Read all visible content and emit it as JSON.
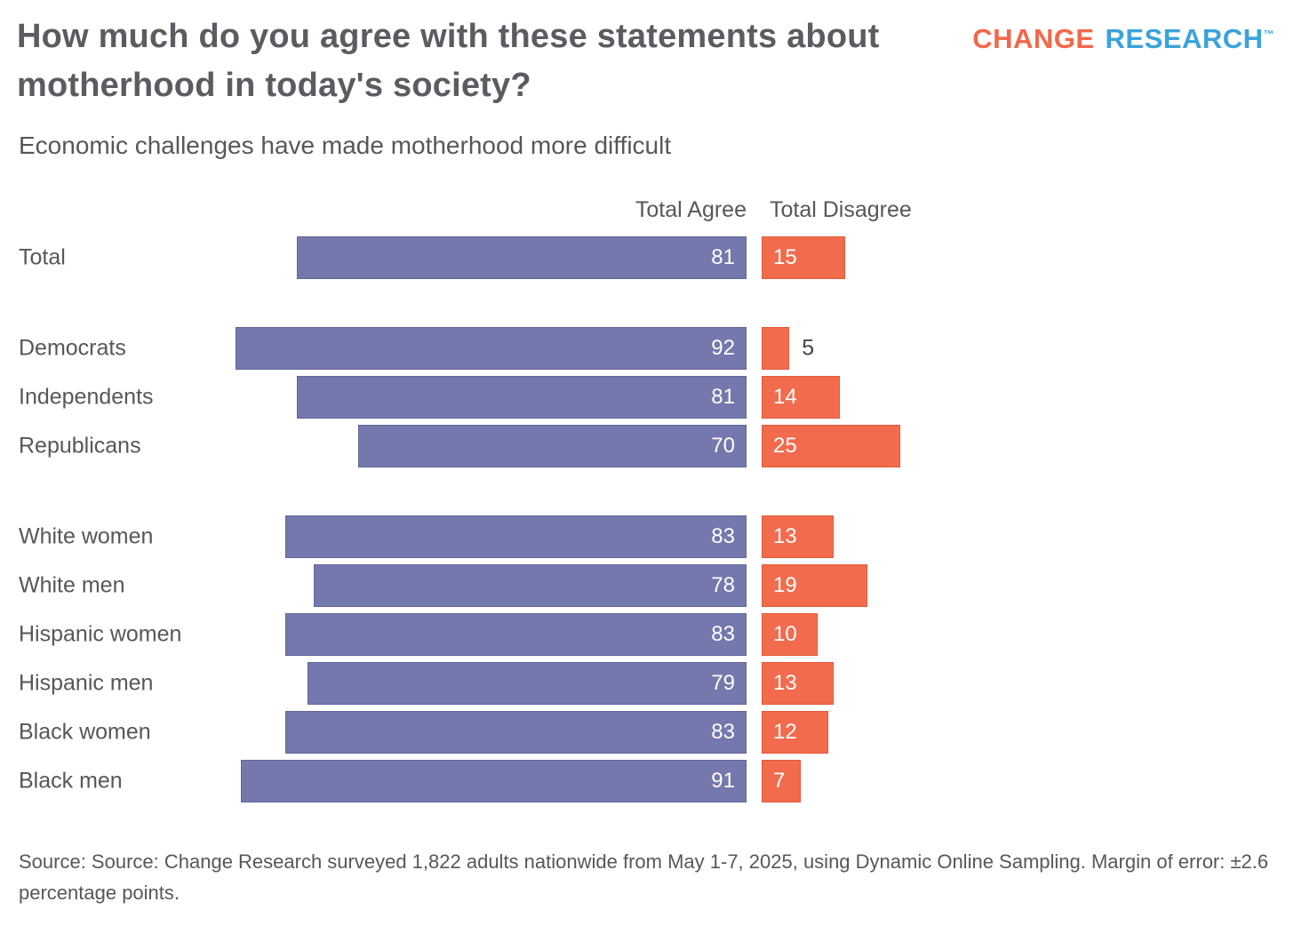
{
  "header": {
    "title": "How much do you agree with these statements about motherhood in today's society?",
    "subtitle": "Economic challenges have made motherhood more difficult",
    "logo": {
      "part1": "CHANGE",
      "part2": "RESEARCH",
      "trademark": "™",
      "part1_color": "#f2684b",
      "part2_color": "#3aa3db"
    }
  },
  "chart_data": {
    "type": "bar",
    "orientation": "horizontal",
    "title": "How much do you agree with these statements about motherhood in today's society?",
    "subtitle": "Economic challenges have made motherhood more difficult",
    "columns": [
      "Total Agree",
      "Total Disagree"
    ],
    "value_unit": "percent",
    "axis_range": [
      0,
      100
    ],
    "agree_color": "#7478ac",
    "disagree_color": "#f26b4d",
    "legend_position": "top",
    "grid": false,
    "groups": [
      {
        "rows": [
          {
            "label": "Total",
            "agree": 81,
            "disagree": 15
          }
        ]
      },
      {
        "rows": [
          {
            "label": "Democrats",
            "agree": 92,
            "disagree": 5
          },
          {
            "label": "Independents",
            "agree": 81,
            "disagree": 14
          },
          {
            "label": "Republicans",
            "agree": 70,
            "disagree": 25
          }
        ]
      },
      {
        "rows": [
          {
            "label": "White women",
            "agree": 83,
            "disagree": 13
          },
          {
            "label": "White men",
            "agree": 78,
            "disagree": 19
          },
          {
            "label": "Hispanic women",
            "agree": 83,
            "disagree": 10
          },
          {
            "label": "Hispanic men",
            "agree": 79,
            "disagree": 13
          },
          {
            "label": "Black women",
            "agree": 83,
            "disagree": 12
          },
          {
            "label": "Black men",
            "agree": 91,
            "disagree": 7
          }
        ]
      }
    ]
  },
  "footer": {
    "source": "Source: Source: Change Research surveyed 1,822 adults nationwide from May 1-7, 2025, using Dynamic Online Sampling. Margin of error: ±2.6 percentage points."
  }
}
